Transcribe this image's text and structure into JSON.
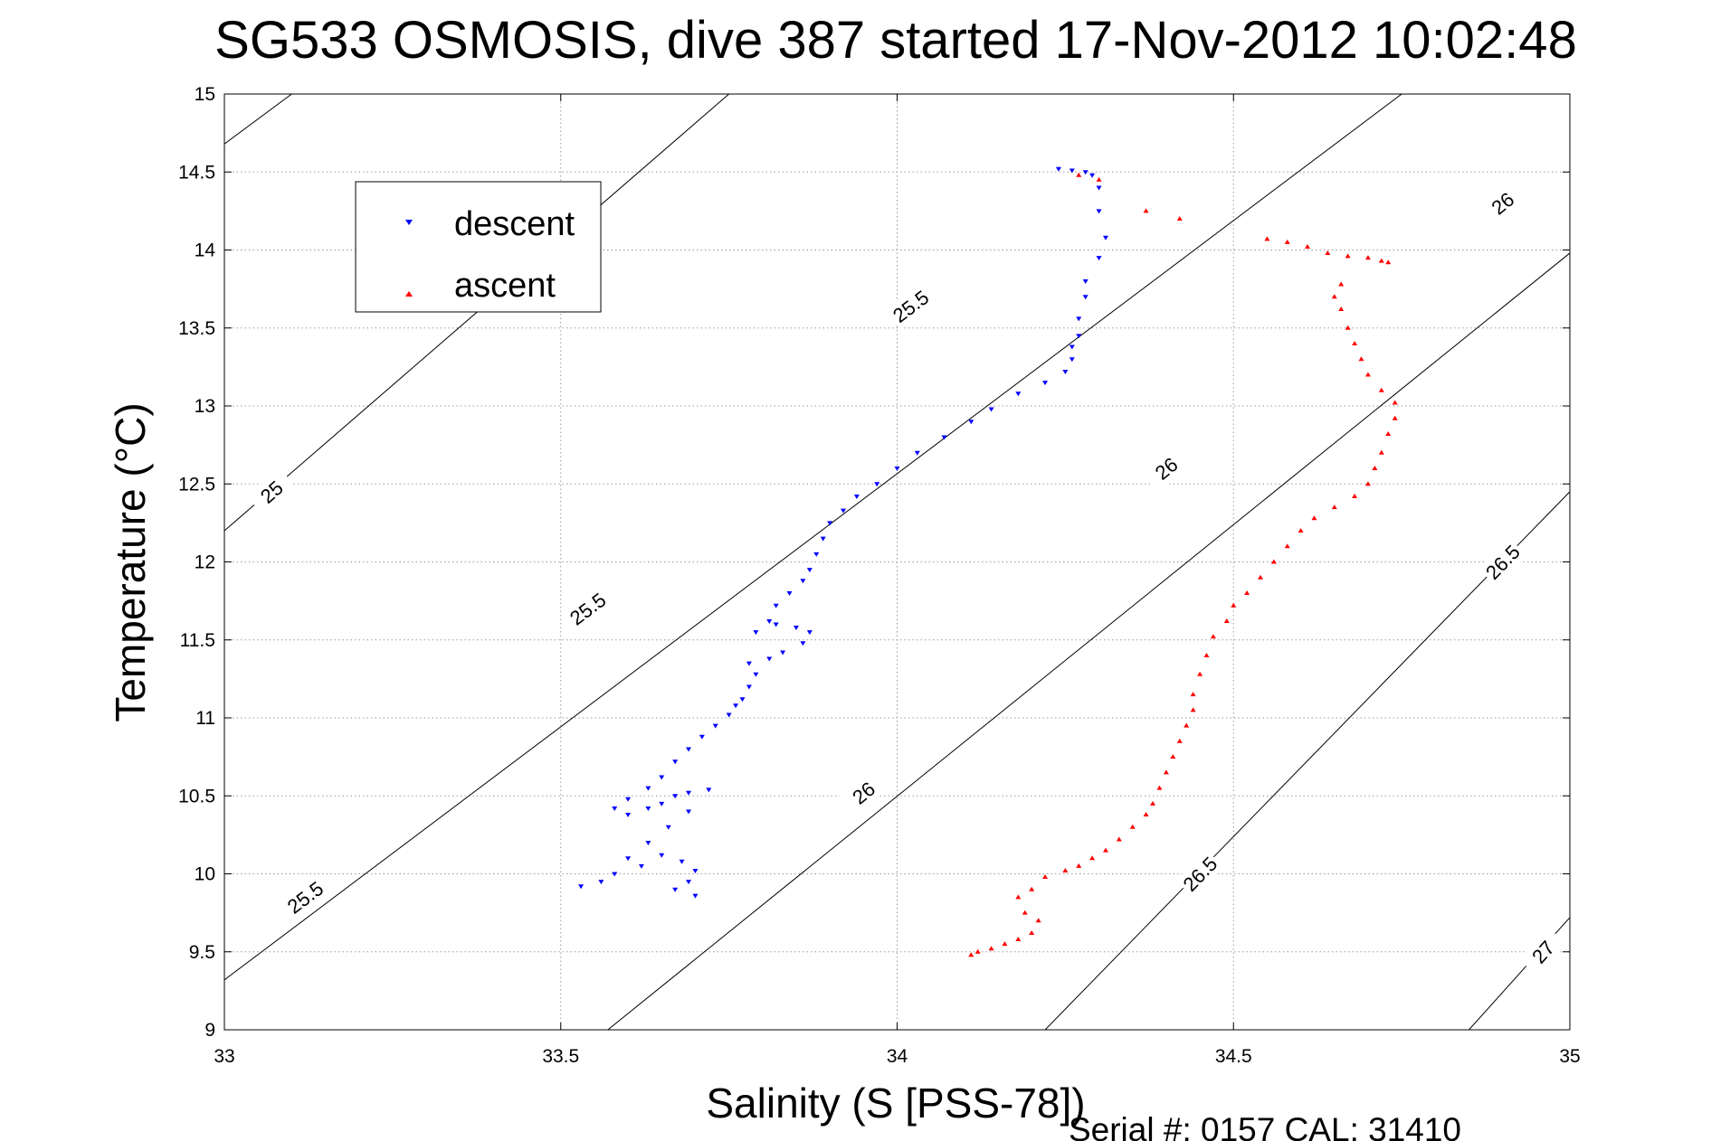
{
  "chart_data": {
    "type": "scatter",
    "title": "SG533 OSMOSIS, dive 387 started 17-Nov-2012 10:02:48",
    "xlabel": "Salinity (S [PSS-78])",
    "ylabel": "Temperature (°C)",
    "footer": "Serial #: 0157  CAL: 31410",
    "xlim": [
      33,
      35
    ],
    "ylim": [
      9,
      15
    ],
    "x_ticks": [
      "33",
      "33.5",
      "34",
      "34.5",
      "35"
    ],
    "y_ticks": [
      "9",
      "9.5",
      "10",
      "10.5",
      "11",
      "11.5",
      "12",
      "12.5",
      "13",
      "13.5",
      "14",
      "14.5",
      "15"
    ],
    "grid": true,
    "legend_position": "top-left",
    "isopycnals": [
      {
        "label": "25",
        "points": [
          [
            33.0,
            14.68
          ],
          [
            33.1,
            15.0
          ]
        ],
        "labels_at": []
      },
      {
        "label": "25",
        "points": [
          [
            33.0,
            12.2
          ],
          [
            33.75,
            15.0
          ]
        ],
        "labels_at": [
          [
            33.07,
            12.45
          ]
        ]
      },
      {
        "label": "25.5",
        "points": [
          [
            33.0,
            9.32
          ],
          [
            34.75,
            15.0
          ]
        ],
        "labels_at": [
          [
            33.12,
            9.85
          ],
          [
            33.54,
            11.7
          ],
          [
            34.02,
            13.64
          ]
        ]
      },
      {
        "label": "26",
        "points": [
          [
            33.57,
            9.0
          ],
          [
            35.0,
            13.98
          ]
        ],
        "labels_at": [
          [
            33.95,
            10.52
          ],
          [
            34.4,
            12.6
          ],
          [
            34.9,
            14.3
          ]
        ]
      },
      {
        "label": "26.5",
        "points": [
          [
            34.22,
            9.0
          ],
          [
            35.0,
            12.45
          ]
        ],
        "labels_at": [
          [
            34.45,
            10.0
          ],
          [
            34.9,
            12.0
          ]
        ]
      },
      {
        "label": "27",
        "points": [
          [
            34.85,
            9.0
          ],
          [
            35.0,
            9.72
          ]
        ],
        "labels_at": [
          [
            34.96,
            9.5
          ]
        ]
      }
    ],
    "series": [
      {
        "name": "descent",
        "color": "#0000ff",
        "marker": "triangle-down",
        "points": [
          [
            34.24,
            14.52
          ],
          [
            34.26,
            14.51
          ],
          [
            34.28,
            14.5
          ],
          [
            34.29,
            14.48
          ],
          [
            34.3,
            14.4
          ],
          [
            34.3,
            14.25
          ],
          [
            34.31,
            14.08
          ],
          [
            34.3,
            13.95
          ],
          [
            34.28,
            13.8
          ],
          [
            34.28,
            13.7
          ],
          [
            34.27,
            13.56
          ],
          [
            34.27,
            13.45
          ],
          [
            34.26,
            13.38
          ],
          [
            34.26,
            13.3
          ],
          [
            34.25,
            13.22
          ],
          [
            34.22,
            13.15
          ],
          [
            34.18,
            13.08
          ],
          [
            34.14,
            12.98
          ],
          [
            34.11,
            12.9
          ],
          [
            34.07,
            12.8
          ],
          [
            34.03,
            12.7
          ],
          [
            34.0,
            12.6
          ],
          [
            33.97,
            12.5
          ],
          [
            33.94,
            12.42
          ],
          [
            33.92,
            12.33
          ],
          [
            33.9,
            12.25
          ],
          [
            33.89,
            12.15
          ],
          [
            33.88,
            12.05
          ],
          [
            33.87,
            11.95
          ],
          [
            33.86,
            11.88
          ],
          [
            33.84,
            11.8
          ],
          [
            33.82,
            11.72
          ],
          [
            33.81,
            11.62
          ],
          [
            33.79,
            11.55
          ],
          [
            33.82,
            11.6
          ],
          [
            33.85,
            11.58
          ],
          [
            33.87,
            11.55
          ],
          [
            33.86,
            11.48
          ],
          [
            33.83,
            11.42
          ],
          [
            33.81,
            11.38
          ],
          [
            33.78,
            11.35
          ],
          [
            33.79,
            11.28
          ],
          [
            33.78,
            11.2
          ],
          [
            33.77,
            11.12
          ],
          [
            33.76,
            11.08
          ],
          [
            33.75,
            11.02
          ],
          [
            33.73,
            10.95
          ],
          [
            33.71,
            10.88
          ],
          [
            33.69,
            10.8
          ],
          [
            33.67,
            10.72
          ],
          [
            33.65,
            10.62
          ],
          [
            33.63,
            10.55
          ],
          [
            33.6,
            10.48
          ],
          [
            33.58,
            10.42
          ],
          [
            33.6,
            10.38
          ],
          [
            33.63,
            10.42
          ],
          [
            33.65,
            10.45
          ],
          [
            33.67,
            10.5
          ],
          [
            33.69,
            10.52
          ],
          [
            33.72,
            10.54
          ],
          [
            33.69,
            10.4
          ],
          [
            33.66,
            10.3
          ],
          [
            33.63,
            10.2
          ],
          [
            33.6,
            10.1
          ],
          [
            33.58,
            10.0
          ],
          [
            33.56,
            9.95
          ],
          [
            33.53,
            9.92
          ],
          [
            33.62,
            10.05
          ],
          [
            33.65,
            10.12
          ],
          [
            33.68,
            10.08
          ],
          [
            33.7,
            10.02
          ],
          [
            33.69,
            9.95
          ],
          [
            33.67,
            9.9
          ],
          [
            33.7,
            9.86
          ]
        ]
      },
      {
        "name": "ascent",
        "color": "#ff0000",
        "marker": "triangle-up",
        "points": [
          [
            34.37,
            14.25
          ],
          [
            34.42,
            14.2
          ],
          [
            34.3,
            14.45
          ],
          [
            34.27,
            14.48
          ],
          [
            34.55,
            14.07
          ],
          [
            34.58,
            14.05
          ],
          [
            34.61,
            14.02
          ],
          [
            34.64,
            13.98
          ],
          [
            34.67,
            13.96
          ],
          [
            34.7,
            13.95
          ],
          [
            34.72,
            13.93
          ],
          [
            34.73,
            13.92
          ],
          [
            34.66,
            13.78
          ],
          [
            34.65,
            13.7
          ],
          [
            34.66,
            13.62
          ],
          [
            34.67,
            13.5
          ],
          [
            34.68,
            13.4
          ],
          [
            34.69,
            13.3
          ],
          [
            34.7,
            13.2
          ],
          [
            34.72,
            13.1
          ],
          [
            34.74,
            13.02
          ],
          [
            34.74,
            12.92
          ],
          [
            34.73,
            12.82
          ],
          [
            34.72,
            12.7
          ],
          [
            34.71,
            12.6
          ],
          [
            34.7,
            12.5
          ],
          [
            34.68,
            12.42
          ],
          [
            34.65,
            12.35
          ],
          [
            34.62,
            12.28
          ],
          [
            34.6,
            12.2
          ],
          [
            34.58,
            12.1
          ],
          [
            34.56,
            12.0
          ],
          [
            34.54,
            11.9
          ],
          [
            34.52,
            11.8
          ],
          [
            34.5,
            11.72
          ],
          [
            34.49,
            11.62
          ],
          [
            34.47,
            11.52
          ],
          [
            34.46,
            11.4
          ],
          [
            34.45,
            11.28
          ],
          [
            34.44,
            11.15
          ],
          [
            34.44,
            11.05
          ],
          [
            34.43,
            10.95
          ],
          [
            34.42,
            10.85
          ],
          [
            34.41,
            10.75
          ],
          [
            34.4,
            10.65
          ],
          [
            34.39,
            10.55
          ],
          [
            34.38,
            10.45
          ],
          [
            34.37,
            10.38
          ],
          [
            34.35,
            10.3
          ],
          [
            34.33,
            10.22
          ],
          [
            34.31,
            10.15
          ],
          [
            34.29,
            10.1
          ],
          [
            34.27,
            10.05
          ],
          [
            34.25,
            10.02
          ],
          [
            34.22,
            9.98
          ],
          [
            34.2,
            9.9
          ],
          [
            34.18,
            9.85
          ],
          [
            34.19,
            9.75
          ],
          [
            34.21,
            9.7
          ],
          [
            34.2,
            9.62
          ],
          [
            34.18,
            9.58
          ],
          [
            34.16,
            9.55
          ],
          [
            34.14,
            9.52
          ],
          [
            34.12,
            9.5
          ],
          [
            34.11,
            9.48
          ]
        ]
      }
    ]
  },
  "legend": {
    "items": [
      {
        "label": "descent",
        "color": "#0000ff",
        "marker": "triangle-down"
      },
      {
        "label": "ascent",
        "color": "#ff0000",
        "marker": "triangle-up"
      }
    ]
  }
}
